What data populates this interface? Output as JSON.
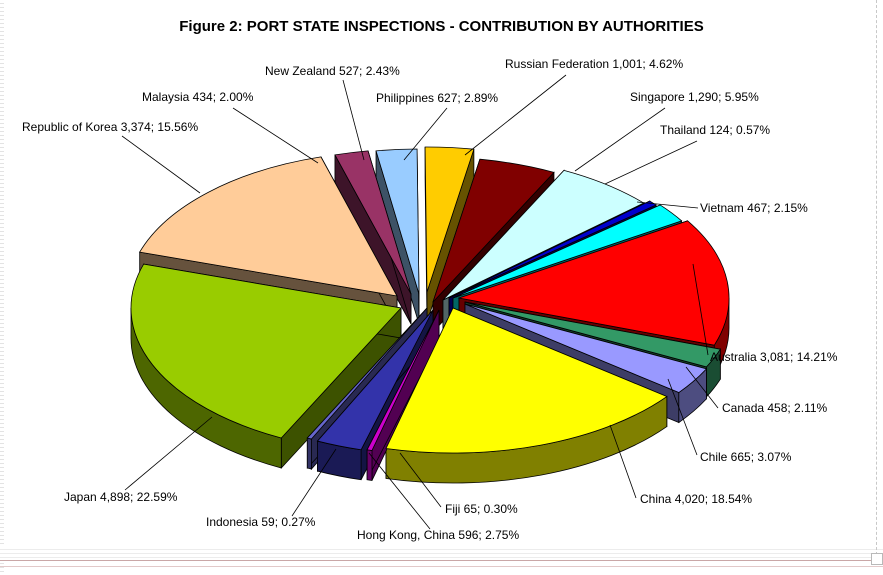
{
  "chart_data": {
    "type": "pie",
    "title": "Figure 2: PORT STATE INSPECTIONS - CONTRIBUTION BY AUTHORITIES",
    "slices": [
      {
        "name": "Russian Federation",
        "value": 1001,
        "percent": 4.62,
        "label": "Russian Federation 1,001; 4.62%",
        "color": "#800000"
      },
      {
        "name": "Singapore",
        "value": 1290,
        "percent": 5.95,
        "label": "Singapore 1,290; 5.95%",
        "color": "#ccffff"
      },
      {
        "name": "Thailand",
        "value": 124,
        "percent": 0.57,
        "label": "Thailand 124; 0.57%",
        "color": "#0000cc"
      },
      {
        "name": "Vietnam",
        "value": 467,
        "percent": 2.15,
        "label": "Vietnam 467; 2.15%",
        "color": "#00ffff"
      },
      {
        "name": "Australia",
        "value": 3081,
        "percent": 14.21,
        "label": "Australia 3,081; 14.21%",
        "color": "#ff0000"
      },
      {
        "name": "Canada",
        "value": 458,
        "percent": 2.11,
        "label": "Canada 458; 2.11%",
        "color": "#339966"
      },
      {
        "name": "Chile",
        "value": 665,
        "percent": 3.07,
        "label": "Chile 665; 3.07%",
        "color": "#9999ff"
      },
      {
        "name": "China",
        "value": 4020,
        "percent": 18.54,
        "label": "China 4,020; 18.54%",
        "color": "#ffff00"
      },
      {
        "name": "Fiji",
        "value": 65,
        "percent": 0.3,
        "label": "Fiji 65; 0.30%",
        "color": "#cc00cc"
      },
      {
        "name": "Hong Kong, China",
        "value": 596,
        "percent": 2.75,
        "label": "Hong Kong, China 596; 2.75%",
        "color": "#3333aa"
      },
      {
        "name": "Indonesia",
        "value": 59,
        "percent": 0.27,
        "label": "Indonesia 59; 0.27%",
        "color": "#6666cc"
      },
      {
        "name": "Japan",
        "value": 4898,
        "percent": 22.59,
        "label": "Japan 4,898; 22.59%",
        "color": "#99cc00"
      },
      {
        "name": "Republic of Korea",
        "value": 3374,
        "percent": 15.56,
        "label": "Republic of Korea 3,374; 15.56%",
        "color": "#ffcc99"
      },
      {
        "name": "Malaysia",
        "value": 434,
        "percent": 2.0,
        "label": "Malaysia 434; 2.00%",
        "color": "#993366"
      },
      {
        "name": "New Zealand",
        "value": 527,
        "percent": 2.43,
        "label": "New Zealand 527; 2.43%",
        "color": "#99ccff"
      },
      {
        "name": "Philippines",
        "value": 627,
        "percent": 2.89,
        "label": "Philippines 627; 2.89%",
        "color": "#ffcc00"
      }
    ]
  }
}
